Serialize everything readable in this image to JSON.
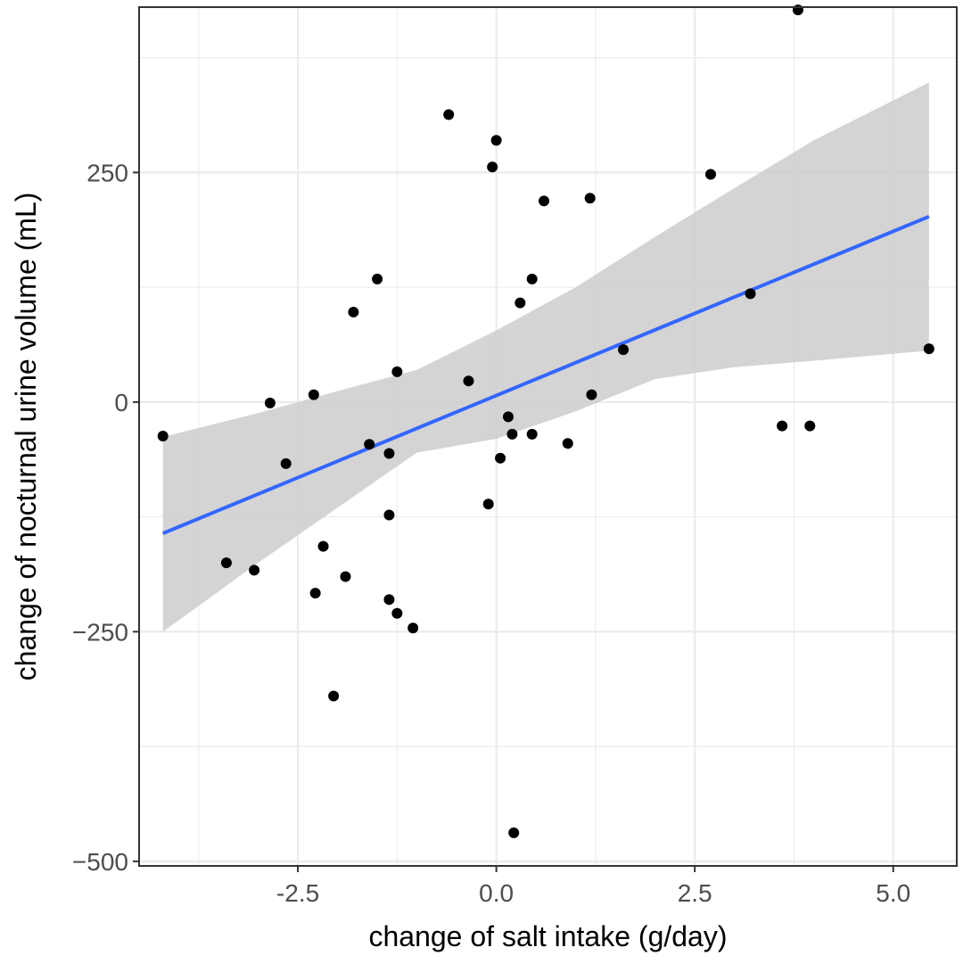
{
  "chart_data": {
    "type": "scatter",
    "xlabel": "change of salt intake (g/day)",
    "ylabel": "change of nocturnal urine volume (mL)",
    "xlim": [
      -4.5,
      5.8
    ],
    "ylim": [
      -505,
      430
    ],
    "x_ticks": [
      -2.5,
      0.0,
      2.5,
      5.0
    ],
    "x_tick_labels": [
      "-2.5",
      "0.0",
      "2.5",
      "5.0"
    ],
    "y_ticks": [
      -500,
      -250,
      0,
      250
    ],
    "y_tick_labels": [
      "−500",
      "−250",
      "0",
      "250"
    ],
    "grid": true,
    "points": [
      {
        "x": -4.2,
        "y": -37
      },
      {
        "x": -3.4,
        "y": -175
      },
      {
        "x": -3.05,
        "y": -183
      },
      {
        "x": -2.85,
        "y": -1
      },
      {
        "x": -2.65,
        "y": -67
      },
      {
        "x": -2.3,
        "y": 8
      },
      {
        "x": -2.28,
        "y": -208
      },
      {
        "x": -2.18,
        "y": -157
      },
      {
        "x": -2.05,
        "y": -320
      },
      {
        "x": -1.9,
        "y": -190
      },
      {
        "x": -1.8,
        "y": 98
      },
      {
        "x": -1.6,
        "y": -46
      },
      {
        "x": -1.5,
        "y": 134
      },
      {
        "x": -1.35,
        "y": -56
      },
      {
        "x": -1.35,
        "y": -123
      },
      {
        "x": -1.35,
        "y": -215
      },
      {
        "x": -1.25,
        "y": 33
      },
      {
        "x": -1.25,
        "y": -230
      },
      {
        "x": -1.05,
        "y": -246
      },
      {
        "x": -0.6,
        "y": 313
      },
      {
        "x": -0.35,
        "y": 23
      },
      {
        "x": -0.1,
        "y": -111
      },
      {
        "x": -0.05,
        "y": 256
      },
      {
        "x": 0.0,
        "y": 285
      },
      {
        "x": 0.05,
        "y": -61
      },
      {
        "x": 0.15,
        "y": -16
      },
      {
        "x": 0.2,
        "y": -35
      },
      {
        "x": 0.22,
        "y": -469
      },
      {
        "x": 0.3,
        "y": 108
      },
      {
        "x": 0.45,
        "y": 134
      },
      {
        "x": 0.45,
        "y": -35
      },
      {
        "x": 0.6,
        "y": 219
      },
      {
        "x": 0.9,
        "y": -45
      },
      {
        "x": 1.18,
        "y": 222
      },
      {
        "x": 1.2,
        "y": 8
      },
      {
        "x": 1.6,
        "y": 57
      },
      {
        "x": 2.7,
        "y": 248
      },
      {
        "x": 3.2,
        "y": 118
      },
      {
        "x": 3.6,
        "y": -26
      },
      {
        "x": 3.8,
        "y": 427
      },
      {
        "x": 3.95,
        "y": -26
      },
      {
        "x": 5.45,
        "y": 58
      }
    ],
    "fit_line": {
      "x": [
        -4.2,
        5.45
      ],
      "y": [
        -143,
        202
      ]
    },
    "confidence_band": {
      "x": [
        -4.2,
        -3.0,
        -2.0,
        -1.0,
        0.0,
        1.0,
        2.0,
        3.0,
        4.0,
        5.45
      ],
      "upper": [
        -38,
        -12,
        12,
        35,
        78,
        125,
        180,
        233,
        285,
        348
      ],
      "lower": [
        -250,
        -175,
        -115,
        -55,
        -40,
        -10,
        25,
        38,
        45,
        56
      ]
    },
    "colors": {
      "points": "#000000",
      "fit_line": "#3366ff",
      "band": "#cccccc",
      "grid": "#ebebeb",
      "panel_border": "#333333",
      "tick_label": "#4d4d4d"
    }
  }
}
